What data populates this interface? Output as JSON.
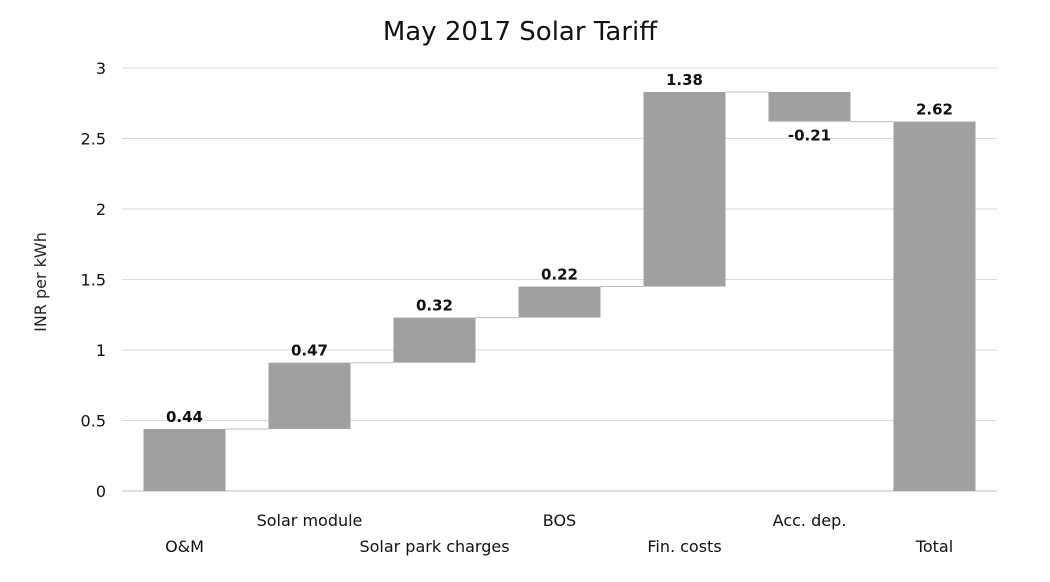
{
  "chart_data": {
    "type": "bar",
    "subtype": "waterfall",
    "title": "May 2017 Solar Tariff",
    "ylabel": "INR per kWh",
    "xlabel": "",
    "ylim": [
      0,
      3
    ],
    "yticks": [
      0,
      0.5,
      1,
      1.5,
      2,
      2.5,
      3
    ],
    "ytick_labels": [
      "0",
      "0.5",
      "1",
      "1.5",
      "2",
      "2.5",
      "3"
    ],
    "grid": true,
    "legend": "none",
    "bar_color": "#a0a0a0",
    "categories": [
      "O&M",
      "Solar module",
      "Solar park charges",
      "BOS",
      "Fin. costs",
      "Acc. dep.",
      "Total"
    ],
    "values": [
      0.44,
      0.47,
      0.32,
      0.22,
      1.38,
      -0.21,
      2.62
    ],
    "data_labels": [
      "0.44",
      "0.47",
      "0.32",
      "0.22",
      "1.38",
      "-0.21",
      "2.62"
    ],
    "is_total": [
      false,
      false,
      false,
      false,
      false,
      false,
      true
    ]
  }
}
